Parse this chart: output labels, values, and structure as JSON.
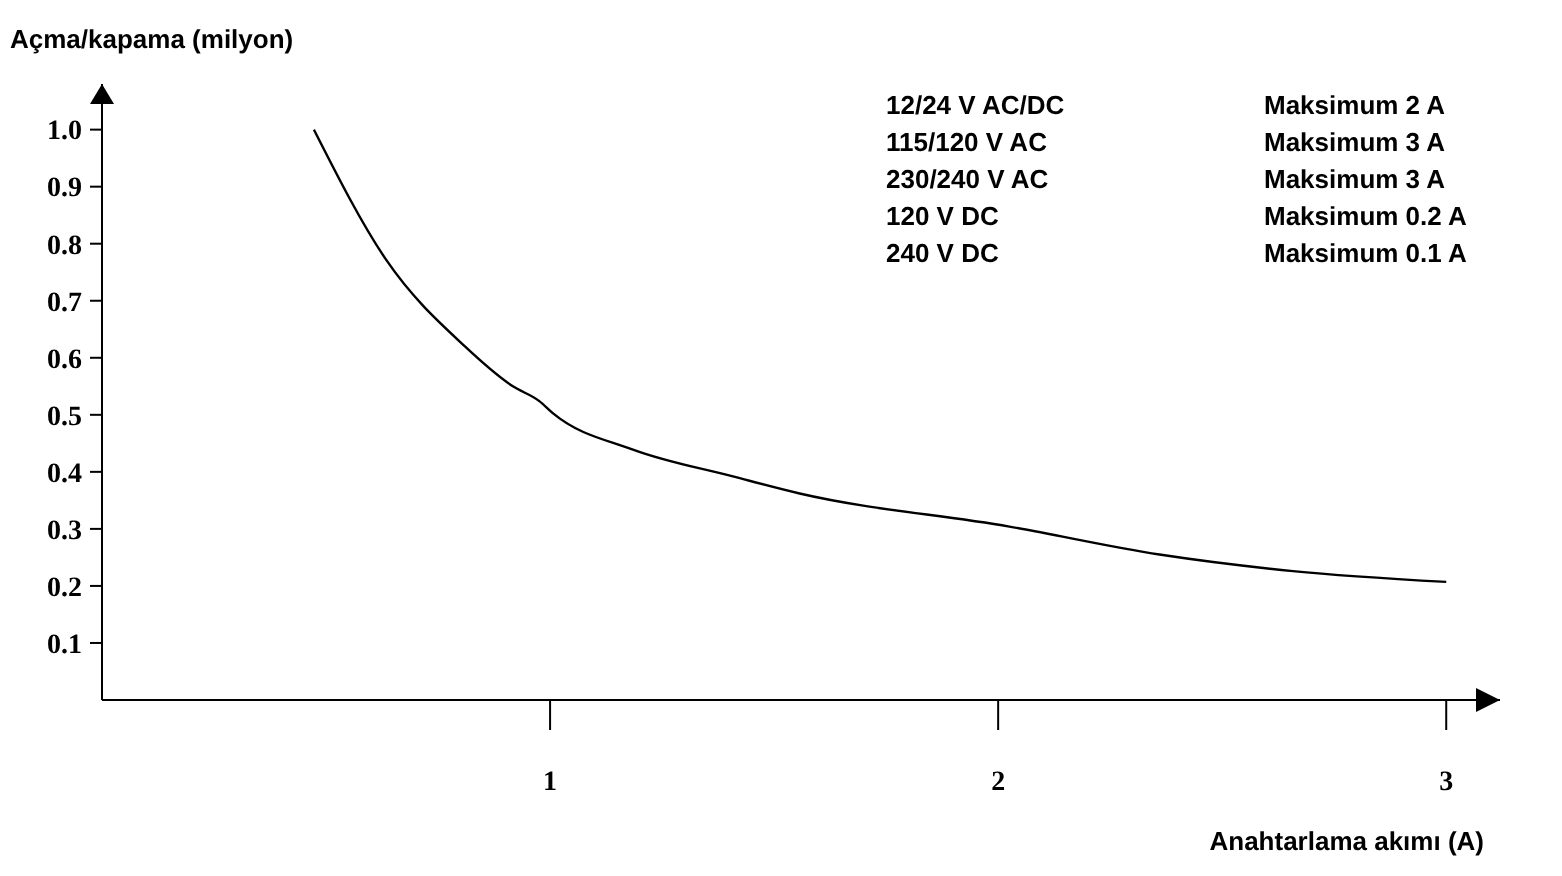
{
  "chart_data": {
    "type": "line",
    "xlabel": "Anahtarlama akımı (A)",
    "ylabel": "Açma/kapama (milyon)",
    "x": [
      0.473,
      0.634,
      0.81,
      0.917,
      0.976,
      1.006,
      1.185,
      1.408,
      1.557,
      2.025,
      2.36,
      2.658,
      3.0
    ],
    "series": [
      {
        "color": "#000000",
        "values": [
          1.0,
          0.772,
          0.62,
          0.55,
          0.524,
          0.503,
          0.439,
          0.392,
          0.362,
          0.304,
          0.255,
          0.226,
          0.207
        ]
      }
    ],
    "xlim": [
      0,
      3.12
    ],
    "ylim": [
      0,
      1.08
    ],
    "xticks": [
      1,
      2,
      3
    ],
    "yticks": [
      0.1,
      0.2,
      0.3,
      0.4,
      0.5,
      0.6,
      0.7,
      0.8,
      0.9,
      {
        "value": 1,
        "label": "1.0"
      }
    ],
    "grid": false,
    "marker": "none",
    "line_style": "solid",
    "annotations": [
      "12/24 V AC/DC",
      "115/120 V AC",
      "230/240 V AC",
      "120 V DC",
      "240 V DC",
      "Maksimum 2 A",
      "Maksimum 3 A",
      "Maksimum 3 A",
      "Maksimum 0.2 A",
      "Maksimum 0.1 A"
    ]
  }
}
